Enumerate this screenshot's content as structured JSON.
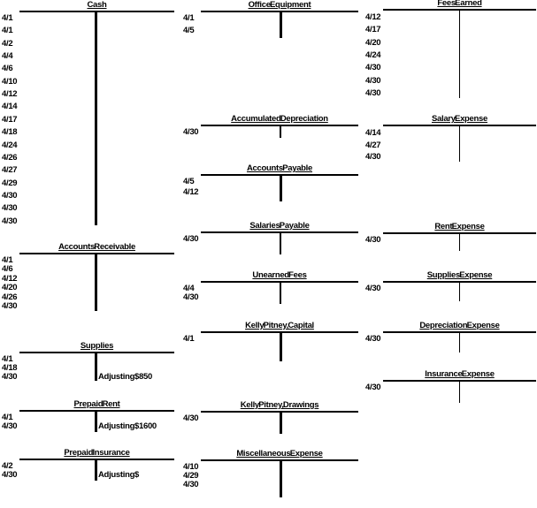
{
  "page": {
    "background": "#ffffff",
    "ink": "#000000"
  },
  "accounts": [
    {
      "id": "cash",
      "title": "Cash",
      "rows": [
        {
          "d": "4/1"
        },
        {
          "d": "4/1"
        },
        {
          "d": "4/2"
        },
        {
          "d": "4/4"
        },
        {
          "d": "4/6"
        },
        {
          "d": "4/10"
        },
        {
          "d": "4/12"
        },
        {
          "d": "4/14"
        },
        {
          "d": "4/17"
        },
        {
          "d": "4/18"
        },
        {
          "d": "4/24"
        },
        {
          "d": "4/26"
        },
        {
          "d": "4/27"
        },
        {
          "d": "4/29"
        },
        {
          "d": "4/30"
        },
        {
          "d": "4/30"
        },
        {
          "d": "4/30"
        }
      ]
    },
    {
      "id": "accounts-receivable",
      "title": "Accounts Receivable",
      "rows": [
        {
          "d": "4/1"
        },
        {
          "d": "4/6"
        },
        {
          "d": "4/12"
        },
        {
          "d": "4/20"
        },
        {
          "d": "4/26"
        },
        {
          "d": "4/30"
        }
      ]
    },
    {
      "id": "supplies",
      "title": "Supplies",
      "rows": [
        {
          "d": "4/1"
        },
        {
          "d": "4/18"
        },
        {
          "d": "4/30",
          "label": "Adjusting",
          "amount": "$850"
        }
      ]
    },
    {
      "id": "prepaid-rent",
      "title": "Prepaid Rent",
      "rows": [
        {
          "d": "4/1"
        },
        {
          "d": "4/30",
          "label": "Adjusting",
          "amount": "$1600"
        }
      ]
    },
    {
      "id": "prepaid-insurance",
      "title": "Prepaid Insurance",
      "rows": [
        {
          "d": "4/2"
        },
        {
          "d": "4/30",
          "label": "Adjusting",
          "amount": "$"
        }
      ]
    },
    {
      "id": "office-equipment",
      "title": "Office Equipment",
      "rows": [
        {
          "d": "4/1"
        },
        {
          "d": "4/5"
        }
      ]
    },
    {
      "id": "accumulated-depreciation",
      "title": "Accumulated Depreciation",
      "rows": [
        {
          "d": "4/30"
        }
      ]
    },
    {
      "id": "accounts-payable",
      "title": "Accounts Payable",
      "rows": [
        {
          "d": "4/5"
        },
        {
          "d": "4/12"
        }
      ]
    },
    {
      "id": "salaries-payable",
      "title": "Salaries Payable",
      "rows": [
        {
          "d": "4/30"
        }
      ]
    },
    {
      "id": "unearned-fees",
      "title": "Unearned Fees",
      "rows": [
        {
          "d": "4/4"
        },
        {
          "d": "4/30"
        }
      ]
    },
    {
      "id": "kelly-pitney-capital",
      "title": "Kelly Pitney, Capital",
      "rows": [
        {
          "d": "4/1"
        }
      ]
    },
    {
      "id": "kelly-pitney-drawings",
      "title": "Kelly Pitney, Drawings",
      "rows": [
        {
          "d": "4/30"
        }
      ]
    },
    {
      "id": "miscellaneous-expense",
      "title": "Miscellaneous Expense",
      "rows": [
        {
          "d": "4/10"
        },
        {
          "d": "4/29"
        },
        {
          "d": "4/30"
        }
      ]
    },
    {
      "id": "fees-earned",
      "title": "Fees Earned",
      "rows": [
        {
          "d": "4/12"
        },
        {
          "d": "4/17"
        },
        {
          "d": "4/20"
        },
        {
          "d": "4/24"
        },
        {
          "d": "4/30"
        },
        {
          "d": "4/30"
        },
        {
          "d": "4/30"
        }
      ]
    },
    {
      "id": "salary-expense",
      "title": "Salary Expense",
      "rows": [
        {
          "d": "4/14"
        },
        {
          "d": "4/27"
        },
        {
          "d": "4/30"
        }
      ]
    },
    {
      "id": "rent-expense",
      "title": "Rent Expense",
      "rows": [
        {
          "d": "4/30"
        }
      ]
    },
    {
      "id": "supplies-expense",
      "title": "Supplies Expense",
      "rows": [
        {
          "d": "4/30"
        }
      ]
    },
    {
      "id": "depreciation-expense",
      "title": "Depreciation Expense",
      "rows": [
        {
          "d": "4/30"
        }
      ]
    },
    {
      "id": "insurance-expense",
      "title": "Insurance Expense",
      "rows": [
        {
          "d": "4/30"
        }
      ]
    }
  ]
}
